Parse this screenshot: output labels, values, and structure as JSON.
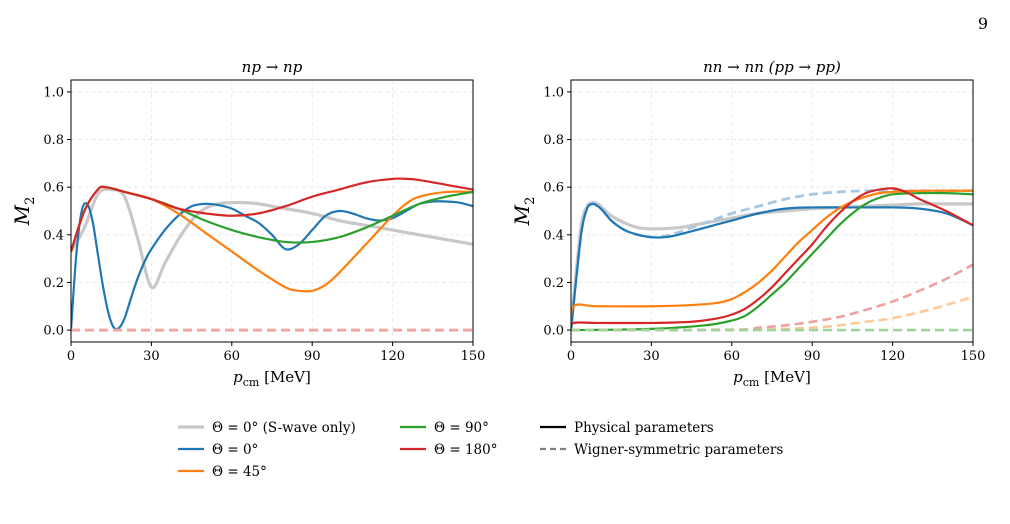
{
  "page": {
    "number": "9"
  },
  "legend": {
    "entries": [
      {
        "label": "Θ = 0° (S-wave only)",
        "color": "#c8c8c8",
        "style": "solid"
      },
      {
        "label": "Θ = 0°",
        "color": "#1f77b4",
        "style": "solid"
      },
      {
        "label": "Θ = 45°",
        "color": "#ff7f0e",
        "style": "solid"
      },
      {
        "label": "Θ = 90°",
        "color": "#2ca02c",
        "style": "solid"
      },
      {
        "label": "Θ = 180°",
        "color": "#d62728",
        "style": "solid"
      },
      {
        "label": "Physical parameters",
        "color": "#000000",
        "style": "solid"
      },
      {
        "label": "Wigner-symmetric parameters",
        "color": "#7f7f7f",
        "style": "dashed"
      }
    ]
  },
  "chart_data": [
    {
      "type": "line",
      "title": "np → np",
      "xlabel": "p_cm [MeV]",
      "ylabel": "M_2",
      "xlim": [
        0,
        150
      ],
      "ylim": [
        -0.05,
        1.05
      ],
      "xticks": [
        "0",
        "30",
        "60",
        "90",
        "120",
        "150"
      ],
      "yticks": [
        "0.0",
        "0.2",
        "0.4",
        "0.6",
        "0.8",
        "1.0"
      ],
      "grid": true,
      "series": [
        {
          "name": "Θ = 0° (S-wave only)",
          "color": "#c8c8c8",
          "style": "solid",
          "width": 3.2,
          "x": [
            0,
            5,
            10,
            15,
            20,
            25,
            30,
            35,
            40,
            45,
            50,
            55,
            60,
            65,
            70,
            80,
            90,
            100,
            110,
            120,
            130,
            140,
            150
          ],
          "y": [
            0.33,
            0.43,
            0.57,
            0.59,
            0.56,
            0.38,
            0.18,
            0.28,
            0.38,
            0.46,
            0.51,
            0.53,
            0.535,
            0.535,
            0.53,
            0.51,
            0.49,
            0.46,
            0.44,
            0.42,
            0.4,
            0.38,
            0.36
          ]
        },
        {
          "name": "Θ = 0°",
          "color": "#1f77b4",
          "style": "solid",
          "width": 2.2,
          "x": [
            0,
            2,
            4,
            6,
            8,
            10,
            12,
            14,
            16,
            18,
            20,
            22,
            24,
            26,
            28,
            30,
            35,
            40,
            45,
            50,
            55,
            60,
            65,
            70,
            75,
            80,
            85,
            90,
            95,
            100,
            105,
            110,
            115,
            120,
            125,
            130,
            135,
            140,
            145,
            150
          ],
          "y": [
            0.0,
            0.32,
            0.5,
            0.53,
            0.46,
            0.32,
            0.18,
            0.07,
            0.01,
            0.01,
            0.05,
            0.12,
            0.19,
            0.25,
            0.3,
            0.34,
            0.42,
            0.48,
            0.52,
            0.53,
            0.525,
            0.51,
            0.48,
            0.45,
            0.4,
            0.34,
            0.36,
            0.42,
            0.48,
            0.5,
            0.49,
            0.47,
            0.46,
            0.47,
            0.5,
            0.53,
            0.54,
            0.54,
            0.535,
            0.52
          ]
        },
        {
          "name": "Θ = 45°",
          "color": "#ff7f0e",
          "style": "solid",
          "width": 2.2,
          "x": [
            0,
            5,
            10,
            13,
            20,
            30,
            40,
            50,
            60,
            70,
            80,
            85,
            90,
            95,
            100,
            110,
            120,
            125,
            130,
            140,
            150
          ],
          "y": [
            0.33,
            0.5,
            0.59,
            0.6,
            0.58,
            0.55,
            0.49,
            0.41,
            0.33,
            0.25,
            0.18,
            0.165,
            0.165,
            0.19,
            0.24,
            0.36,
            0.48,
            0.53,
            0.56,
            0.58,
            0.58
          ]
        },
        {
          "name": "Θ = 90°",
          "color": "#2ca02c",
          "style": "solid",
          "width": 2.2,
          "x": [
            0,
            5,
            10,
            13,
            20,
            30,
            40,
            50,
            60,
            70,
            80,
            90,
            100,
            110,
            120,
            130,
            140,
            150
          ],
          "y": [
            0.33,
            0.5,
            0.59,
            0.6,
            0.58,
            0.55,
            0.51,
            0.46,
            0.42,
            0.39,
            0.37,
            0.37,
            0.39,
            0.43,
            0.48,
            0.53,
            0.56,
            0.58
          ]
        },
        {
          "name": "Θ = 180°",
          "color": "#d62728",
          "style": "solid",
          "width": 2.2,
          "x": [
            0,
            5,
            10,
            13,
            20,
            30,
            40,
            50,
            60,
            70,
            80,
            90,
            100,
            110,
            120,
            125,
            130,
            140,
            150
          ],
          "y": [
            0.33,
            0.5,
            0.59,
            0.6,
            0.58,
            0.55,
            0.51,
            0.49,
            0.48,
            0.49,
            0.52,
            0.56,
            0.59,
            0.62,
            0.635,
            0.635,
            0.63,
            0.61,
            0.59
          ]
        },
        {
          "name": "",
          "color": "#f0a8a3",
          "style": "dashed",
          "width": 3,
          "x": [
            0,
            150
          ],
          "y": [
            0.0,
            0.0
          ]
        }
      ]
    },
    {
      "type": "line",
      "title": "nn → nn (pp → pp)",
      "xlabel": "p_cm [MeV]",
      "ylabel": "M_2",
      "xlim": [
        0,
        150
      ],
      "ylim": [
        -0.05,
        1.05
      ],
      "xticks": [
        "0",
        "30",
        "60",
        "90",
        "120",
        "150"
      ],
      "yticks": [
        "0.0",
        "0.2",
        "0.4",
        "0.6",
        "0.8",
        "1.0"
      ],
      "grid": true,
      "series": [
        {
          "name": "Θ = 0° (S-wave only)",
          "color": "#c8c8c8",
          "style": "solid",
          "width": 3.2,
          "x": [
            0,
            2,
            4,
            6,
            8,
            10,
            12,
            15,
            20,
            25,
            30,
            40,
            50,
            60,
            70,
            80,
            90,
            100,
            110,
            120,
            130,
            140,
            150
          ],
          "y": [
            0.0,
            0.25,
            0.45,
            0.52,
            0.535,
            0.53,
            0.51,
            0.48,
            0.45,
            0.43,
            0.425,
            0.43,
            0.45,
            0.47,
            0.49,
            0.5,
            0.51,
            0.515,
            0.52,
            0.525,
            0.53,
            0.53,
            0.53
          ]
        },
        {
          "name": "Θ = 0° (Wigner)",
          "color": "#a6c8e2",
          "style": "dashed",
          "width": 2.8,
          "x": [
            0,
            2,
            4,
            6,
            8,
            10,
            12,
            15,
            20,
            25,
            30,
            35,
            40,
            50,
            60,
            70,
            80,
            90,
            100,
            110,
            120,
            130,
            140,
            150
          ],
          "y": [
            0.0,
            0.22,
            0.42,
            0.51,
            0.53,
            0.52,
            0.5,
            0.46,
            0.42,
            0.4,
            0.39,
            0.395,
            0.41,
            0.45,
            0.49,
            0.52,
            0.55,
            0.57,
            0.58,
            0.585,
            0.585,
            0.585,
            0.585,
            0.585
          ]
        },
        {
          "name": "Θ = 0°",
          "color": "#1f77b4",
          "style": "solid",
          "width": 2.2,
          "x": [
            0,
            2,
            4,
            6,
            8,
            10,
            12,
            15,
            20,
            25,
            30,
            35,
            40,
            50,
            60,
            70,
            80,
            90,
            100,
            110,
            120,
            130,
            140,
            150
          ],
          "y": [
            0.0,
            0.22,
            0.42,
            0.51,
            0.53,
            0.52,
            0.5,
            0.46,
            0.42,
            0.4,
            0.39,
            0.39,
            0.4,
            0.43,
            0.46,
            0.49,
            0.51,
            0.515,
            0.515,
            0.515,
            0.515,
            0.51,
            0.49,
            0.44
          ]
        },
        {
          "name": "Θ = 45°",
          "color": "#ff7f0e",
          "style": "solid",
          "width": 2.2,
          "x": [
            0,
            1,
            10,
            30,
            45,
            55,
            60,
            65,
            70,
            75,
            80,
            85,
            90,
            95,
            100,
            105,
            110,
            115,
            120,
            130,
            140,
            150
          ],
          "y": [
            0.0,
            0.1,
            0.1,
            0.1,
            0.105,
            0.115,
            0.13,
            0.16,
            0.2,
            0.25,
            0.31,
            0.37,
            0.42,
            0.47,
            0.51,
            0.54,
            0.56,
            0.575,
            0.58,
            0.585,
            0.585,
            0.585
          ]
        },
        {
          "name": "Θ = 90°",
          "color": "#2ca02c",
          "style": "solid",
          "width": 2.2,
          "x": [
            0,
            30,
            50,
            60,
            65,
            70,
            75,
            80,
            85,
            90,
            95,
            100,
            105,
            110,
            115,
            120,
            130,
            140,
            150
          ],
          "y": [
            0.0,
            0.005,
            0.02,
            0.04,
            0.06,
            0.1,
            0.15,
            0.2,
            0.26,
            0.32,
            0.38,
            0.44,
            0.49,
            0.53,
            0.555,
            0.57,
            0.575,
            0.575,
            0.57
          ]
        },
        {
          "name": "Θ = 180°",
          "color": "#d62728",
          "style": "solid",
          "width": 2.2,
          "x": [
            0,
            1,
            10,
            30,
            45,
            55,
            60,
            65,
            70,
            75,
            80,
            85,
            90,
            95,
            100,
            105,
            110,
            115,
            120,
            125,
            130,
            140,
            150
          ],
          "y": [
            0.0,
            0.03,
            0.03,
            0.03,
            0.035,
            0.05,
            0.065,
            0.09,
            0.13,
            0.18,
            0.24,
            0.3,
            0.36,
            0.43,
            0.49,
            0.54,
            0.575,
            0.59,
            0.595,
            0.58,
            0.55,
            0.5,
            0.44
          ]
        },
        {
          "name": "Θ = 45° (Wigner)",
          "color": "#ffc897",
          "style": "dashed",
          "width": 2.6,
          "x": [
            0,
            60,
            80,
            90,
            100,
            110,
            120,
            130,
            140,
            150
          ],
          "y": [
            0.0,
            0.0,
            0.005,
            0.01,
            0.02,
            0.035,
            0.05,
            0.075,
            0.105,
            0.14
          ]
        },
        {
          "name": "Θ = 180° (Wigner)",
          "color": "#eba2a0",
          "style": "dashed",
          "width": 2.6,
          "x": [
            0,
            60,
            70,
            80,
            90,
            100,
            110,
            120,
            130,
            140,
            150
          ],
          "y": [
            0.0,
            0.002,
            0.01,
            0.02,
            0.035,
            0.055,
            0.085,
            0.12,
            0.165,
            0.215,
            0.275
          ]
        },
        {
          "name": "Θ = 90° (Wigner)",
          "color": "#9fd49a",
          "style": "dashed",
          "width": 2.6,
          "x": [
            0,
            150
          ],
          "y": [
            0.0,
            0.0
          ]
        }
      ]
    }
  ]
}
